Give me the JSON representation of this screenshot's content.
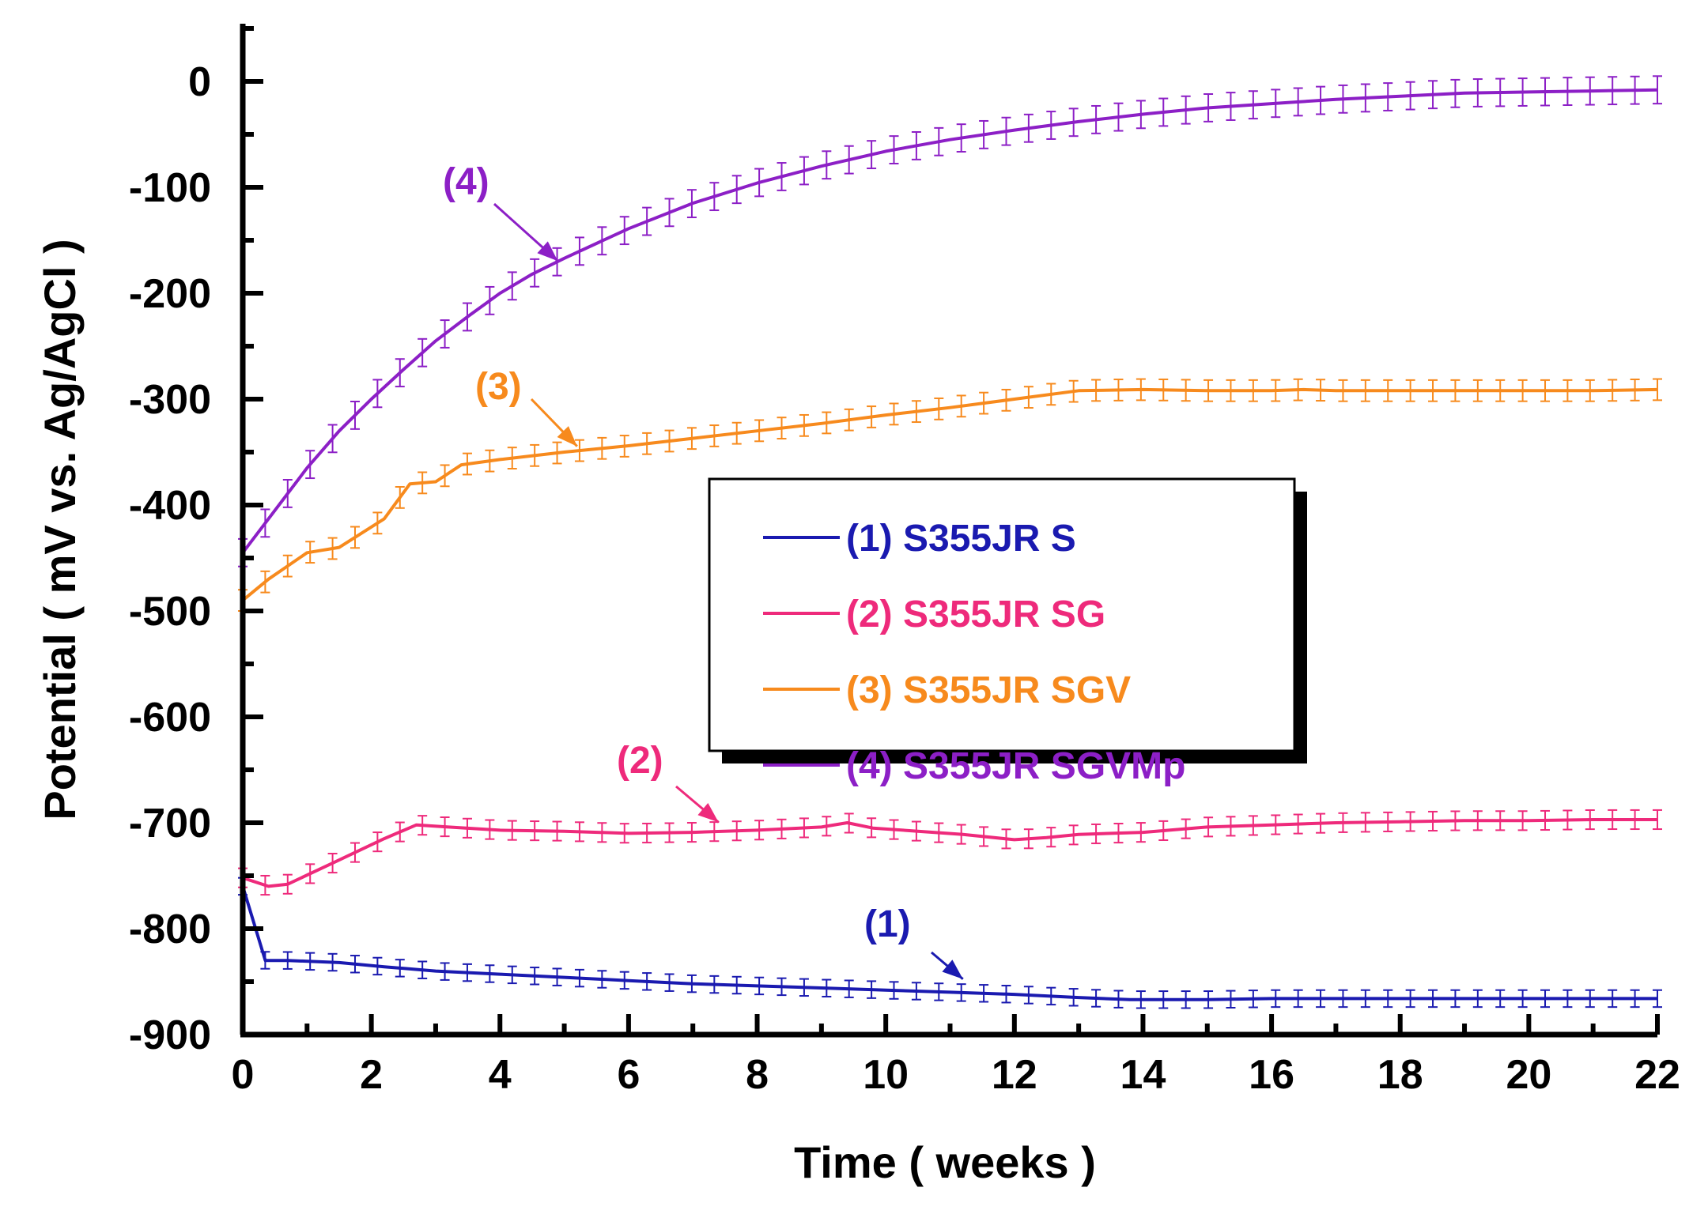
{
  "chart_data": {
    "type": "line",
    "xlabel": "Time ( weeks )",
    "ylabel": "Potential ( mV vs. Ag/AgCl )",
    "xlim": [
      0,
      22
    ],
    "ylim": [
      -900,
      50
    ],
    "x_ticks": [
      0,
      2,
      4,
      6,
      8,
      10,
      12,
      14,
      16,
      18,
      20,
      22
    ],
    "y_ticks": [
      0,
      -100,
      -200,
      -300,
      -400,
      -500,
      -600,
      -700,
      -800,
      -900
    ],
    "grid": false,
    "legend_position": "center-right",
    "error_bars": true,
    "series": [
      {
        "name": "(1) S355JR S",
        "label": "(1)",
        "color": "#1a1ab0",
        "error": 8,
        "points": [
          [
            0,
            -760
          ],
          [
            0.35,
            -830
          ],
          [
            0.7,
            -830
          ],
          [
            1.5,
            -832
          ],
          [
            2.2,
            -836
          ],
          [
            3,
            -840
          ],
          [
            4,
            -843
          ],
          [
            5,
            -846
          ],
          [
            6,
            -849
          ],
          [
            7,
            -852
          ],
          [
            8,
            -854
          ],
          [
            9,
            -856
          ],
          [
            10,
            -858
          ],
          [
            11,
            -860
          ],
          [
            12,
            -862
          ],
          [
            13,
            -865
          ],
          [
            13.8,
            -867
          ],
          [
            15,
            -867
          ],
          [
            16,
            -866
          ],
          [
            17,
            -866
          ],
          [
            18,
            -866
          ],
          [
            19,
            -866
          ],
          [
            20,
            -866
          ],
          [
            21,
            -866
          ],
          [
            22,
            -866
          ]
        ]
      },
      {
        "name": "(2) S355JR SG",
        "label": "(2)",
        "color": "#ee2a7b",
        "error": 9,
        "points": [
          [
            0,
            -752
          ],
          [
            0.4,
            -760
          ],
          [
            0.7,
            -758
          ],
          [
            1.4,
            -738
          ],
          [
            2.2,
            -715
          ],
          [
            2.7,
            -702
          ],
          [
            3.2,
            -704
          ],
          [
            4,
            -707
          ],
          [
            5,
            -708
          ],
          [
            6,
            -710
          ],
          [
            7,
            -709
          ],
          [
            8,
            -707
          ],
          [
            9,
            -704
          ],
          [
            9.4,
            -700
          ],
          [
            9.8,
            -705
          ],
          [
            10.5,
            -708
          ],
          [
            11.2,
            -711
          ],
          [
            12,
            -716
          ],
          [
            12.5,
            -714
          ],
          [
            13,
            -711
          ],
          [
            14,
            -709
          ],
          [
            15,
            -704
          ],
          [
            16,
            -702
          ],
          [
            17,
            -700
          ],
          [
            18,
            -699
          ],
          [
            19,
            -698
          ],
          [
            20,
            -698
          ],
          [
            21,
            -697
          ],
          [
            22,
            -697
          ]
        ]
      },
      {
        "name": "(3) S355JR SGV",
        "label": "(3)",
        "color": "#f78a1d",
        "error": 10,
        "points": [
          [
            0,
            -490
          ],
          [
            0.4,
            -470
          ],
          [
            1,
            -445
          ],
          [
            1.5,
            -440
          ],
          [
            2.2,
            -413
          ],
          [
            2.6,
            -380
          ],
          [
            3,
            -378
          ],
          [
            3.4,
            -362
          ],
          [
            4,
            -357
          ],
          [
            5,
            -350
          ],
          [
            6,
            -344
          ],
          [
            7,
            -337
          ],
          [
            8,
            -330
          ],
          [
            9,
            -323
          ],
          [
            10,
            -315
          ],
          [
            11,
            -308
          ],
          [
            12,
            -300
          ],
          [
            13,
            -292
          ],
          [
            14,
            -291
          ],
          [
            15,
            -292
          ],
          [
            16,
            -292
          ],
          [
            16.5,
            -291
          ],
          [
            17,
            -292
          ],
          [
            18,
            -292
          ],
          [
            19,
            -292
          ],
          [
            20,
            -292
          ],
          [
            21,
            -292
          ],
          [
            22,
            -291
          ]
        ]
      },
      {
        "name": "(4) S355JR SGVMp",
        "label": "(4)",
        "color": "#8c1fc6",
        "error": 13,
        "points": [
          [
            0,
            -445
          ],
          [
            0.5,
            -405
          ],
          [
            1,
            -365
          ],
          [
            1.5,
            -330
          ],
          [
            2,
            -300
          ],
          [
            2.5,
            -272
          ],
          [
            3,
            -245
          ],
          [
            3.5,
            -222
          ],
          [
            4,
            -200
          ],
          [
            4.5,
            -182
          ],
          [
            5,
            -167
          ],
          [
            6,
            -139
          ],
          [
            7,
            -115
          ],
          [
            8,
            -96
          ],
          [
            9,
            -80
          ],
          [
            10,
            -66
          ],
          [
            11,
            -55
          ],
          [
            12,
            -46
          ],
          [
            13,
            -38
          ],
          [
            14,
            -31
          ],
          [
            15,
            -25
          ],
          [
            16,
            -21
          ],
          [
            17,
            -17
          ],
          [
            18,
            -14
          ],
          [
            19,
            -11
          ],
          [
            20,
            -10
          ],
          [
            21,
            -9
          ],
          [
            22,
            -8
          ]
        ]
      }
    ],
    "annotations": [
      {
        "text": "(1)",
        "series": 0,
        "x": 11.2,
        "y": -858
      },
      {
        "text": "(2)",
        "series": 1,
        "x": 7.4,
        "y": -710
      },
      {
        "text": "(3)",
        "series": 2,
        "x": 5.2,
        "y": -355
      },
      {
        "text": "(4)",
        "series": 3,
        "x": 4.9,
        "y": -180
      }
    ]
  }
}
